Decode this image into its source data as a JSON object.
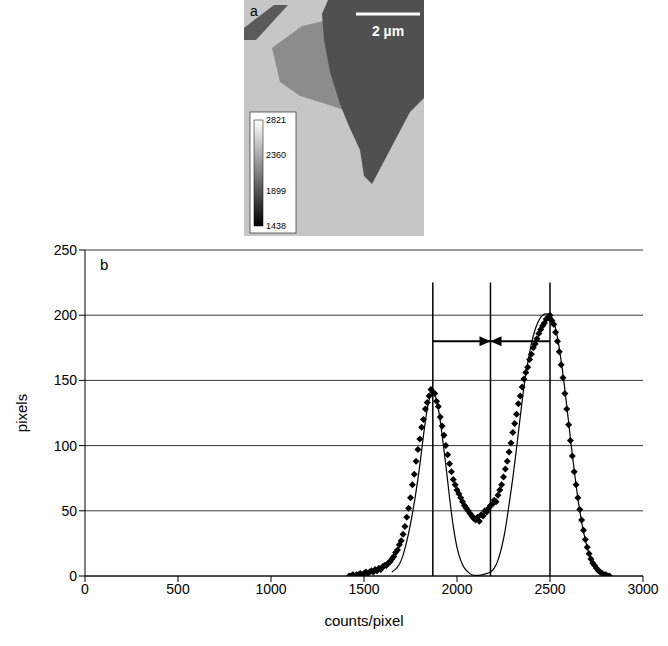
{
  "chart_data": [
    {
      "type": "image",
      "label": "a",
      "scale_bar": "2 µm",
      "colorbar": {
        "range": [
          1438,
          2821
        ],
        "ticks": [
          1438,
          1899,
          2360,
          2821
        ]
      }
    },
    {
      "type": "scatter",
      "label": "b",
      "x_label": "counts/pixel",
      "y_label": "pixels",
      "xlim": [
        0,
        3000
      ],
      "xticks": [
        0,
        500,
        1000,
        1500,
        2000,
        2500,
        3000
      ],
      "ylim": [
        0,
        250
      ],
      "yticks": [
        0,
        50,
        100,
        150,
        200,
        250
      ],
      "grid": true,
      "series": [
        {
          "type": "scatter",
          "marker": "diamond",
          "color": "#000000",
          "x": [
            1420,
            1430,
            1440,
            1450,
            1460,
            1470,
            1480,
            1490,
            1500,
            1510,
            1520,
            1530,
            1540,
            1550,
            1560,
            1570,
            1580,
            1590,
            1600,
            1610,
            1620,
            1630,
            1640,
            1650,
            1660,
            1670,
            1680,
            1690,
            1700,
            1710,
            1720,
            1730,
            1740,
            1750,
            1760,
            1770,
            1780,
            1790,
            1800,
            1810,
            1820,
            1830,
            1840,
            1850,
            1860,
            1870,
            1880,
            1890,
            1900,
            1910,
            1920,
            1930,
            1940,
            1950,
            1960,
            1970,
            1980,
            1990,
            2000,
            2010,
            2020,
            2030,
            2040,
            2050,
            2060,
            2070,
            2080,
            2090,
            2100,
            2110,
            2120,
            2130,
            2140,
            2150,
            2160,
            2170,
            2180,
            2190,
            2200,
            2210,
            2220,
            2230,
            2240,
            2250,
            2260,
            2270,
            2280,
            2290,
            2300,
            2310,
            2320,
            2330,
            2340,
            2350,
            2360,
            2370,
            2380,
            2390,
            2400,
            2410,
            2420,
            2430,
            2440,
            2450,
            2460,
            2470,
            2480,
            2490,
            2500,
            2510,
            2520,
            2530,
            2540,
            2550,
            2560,
            2570,
            2580,
            2590,
            2600,
            2610,
            2620,
            2630,
            2640,
            2650,
            2660,
            2670,
            2680,
            2690,
            2700,
            2710,
            2720,
            2730,
            2740,
            2750,
            2760,
            2770,
            2780,
            2790,
            2800,
            2810,
            2820
          ],
          "values": [
            0,
            0,
            1,
            0,
            1,
            1,
            2,
            1,
            2,
            3,
            2,
            3,
            4,
            3,
            5,
            4,
            6,
            5,
            7,
            8,
            8,
            10,
            11,
            13,
            15,
            18,
            20,
            24,
            27,
            32,
            38,
            45,
            52,
            60,
            70,
            78,
            88,
            97,
            105,
            114,
            120,
            128,
            133,
            138,
            143,
            141,
            140,
            134,
            130,
            122,
            115,
            108,
            100,
            93,
            86,
            80,
            74,
            70,
            66,
            63,
            60,
            57,
            54,
            52,
            50,
            48,
            46,
            44,
            43,
            45,
            42,
            47,
            46,
            50,
            49,
            52,
            54,
            55,
            58,
            57,
            62,
            66,
            70,
            76,
            82,
            88,
            95,
            102,
            110,
            117,
            124,
            132,
            138,
            145,
            151,
            156,
            160,
            166,
            170,
            175,
            178,
            182,
            186,
            189,
            192,
            194,
            197,
            198,
            200,
            196,
            193,
            187,
            180,
            172,
            162,
            152,
            140,
            128,
            116,
            104,
            92,
            80,
            70,
            60,
            51,
            43,
            35,
            28,
            22,
            17,
            13,
            10,
            8,
            6,
            4,
            3,
            2,
            1,
            1,
            0,
            0
          ]
        },
        {
          "type": "line",
          "color": "#000000",
          "line_style": "solid",
          "x": [
            1650,
            1700,
            1750,
            1800,
            1820,
            1840,
            1860,
            1870,
            1880,
            1900,
            1920,
            1940,
            1960,
            1980,
            2000,
            2020,
            2040,
            2060,
            2080,
            2100,
            2120,
            2140,
            2160,
            2180,
            2200,
            2220,
            2240,
            2260,
            2280,
            2300,
            2320,
            2340,
            2360,
            2380,
            2400,
            2420,
            2440,
            2460,
            2480,
            2500,
            2520,
            2540,
            2560,
            2580,
            2600,
            2620,
            2640,
            2660,
            2680,
            2700,
            2720,
            2740,
            2760,
            2780,
            2800
          ],
          "values": [
            3,
            12,
            40,
            85,
            108,
            128,
            139,
            140,
            139,
            128,
            108,
            85,
            60,
            38,
            22,
            12,
            6,
            3,
            1,
            0.5,
            0.5,
            1,
            2,
            3,
            6,
            12,
            22,
            36,
            55,
            75,
            98,
            122,
            145,
            163,
            178,
            189,
            196,
            200,
            201,
            200,
            195,
            183,
            165,
            143,
            118,
            93,
            70,
            50,
            34,
            22,
            13,
            7,
            4,
            2,
            1
          ]
        }
      ],
      "vlines": [
        1870,
        2180,
        2500
      ],
      "vline_top": 225,
      "arrows": [
        {
          "from": 1870,
          "to": 2180,
          "y": 180
        },
        {
          "from": 2500,
          "to": 2180,
          "y": 180
        }
      ]
    }
  ]
}
